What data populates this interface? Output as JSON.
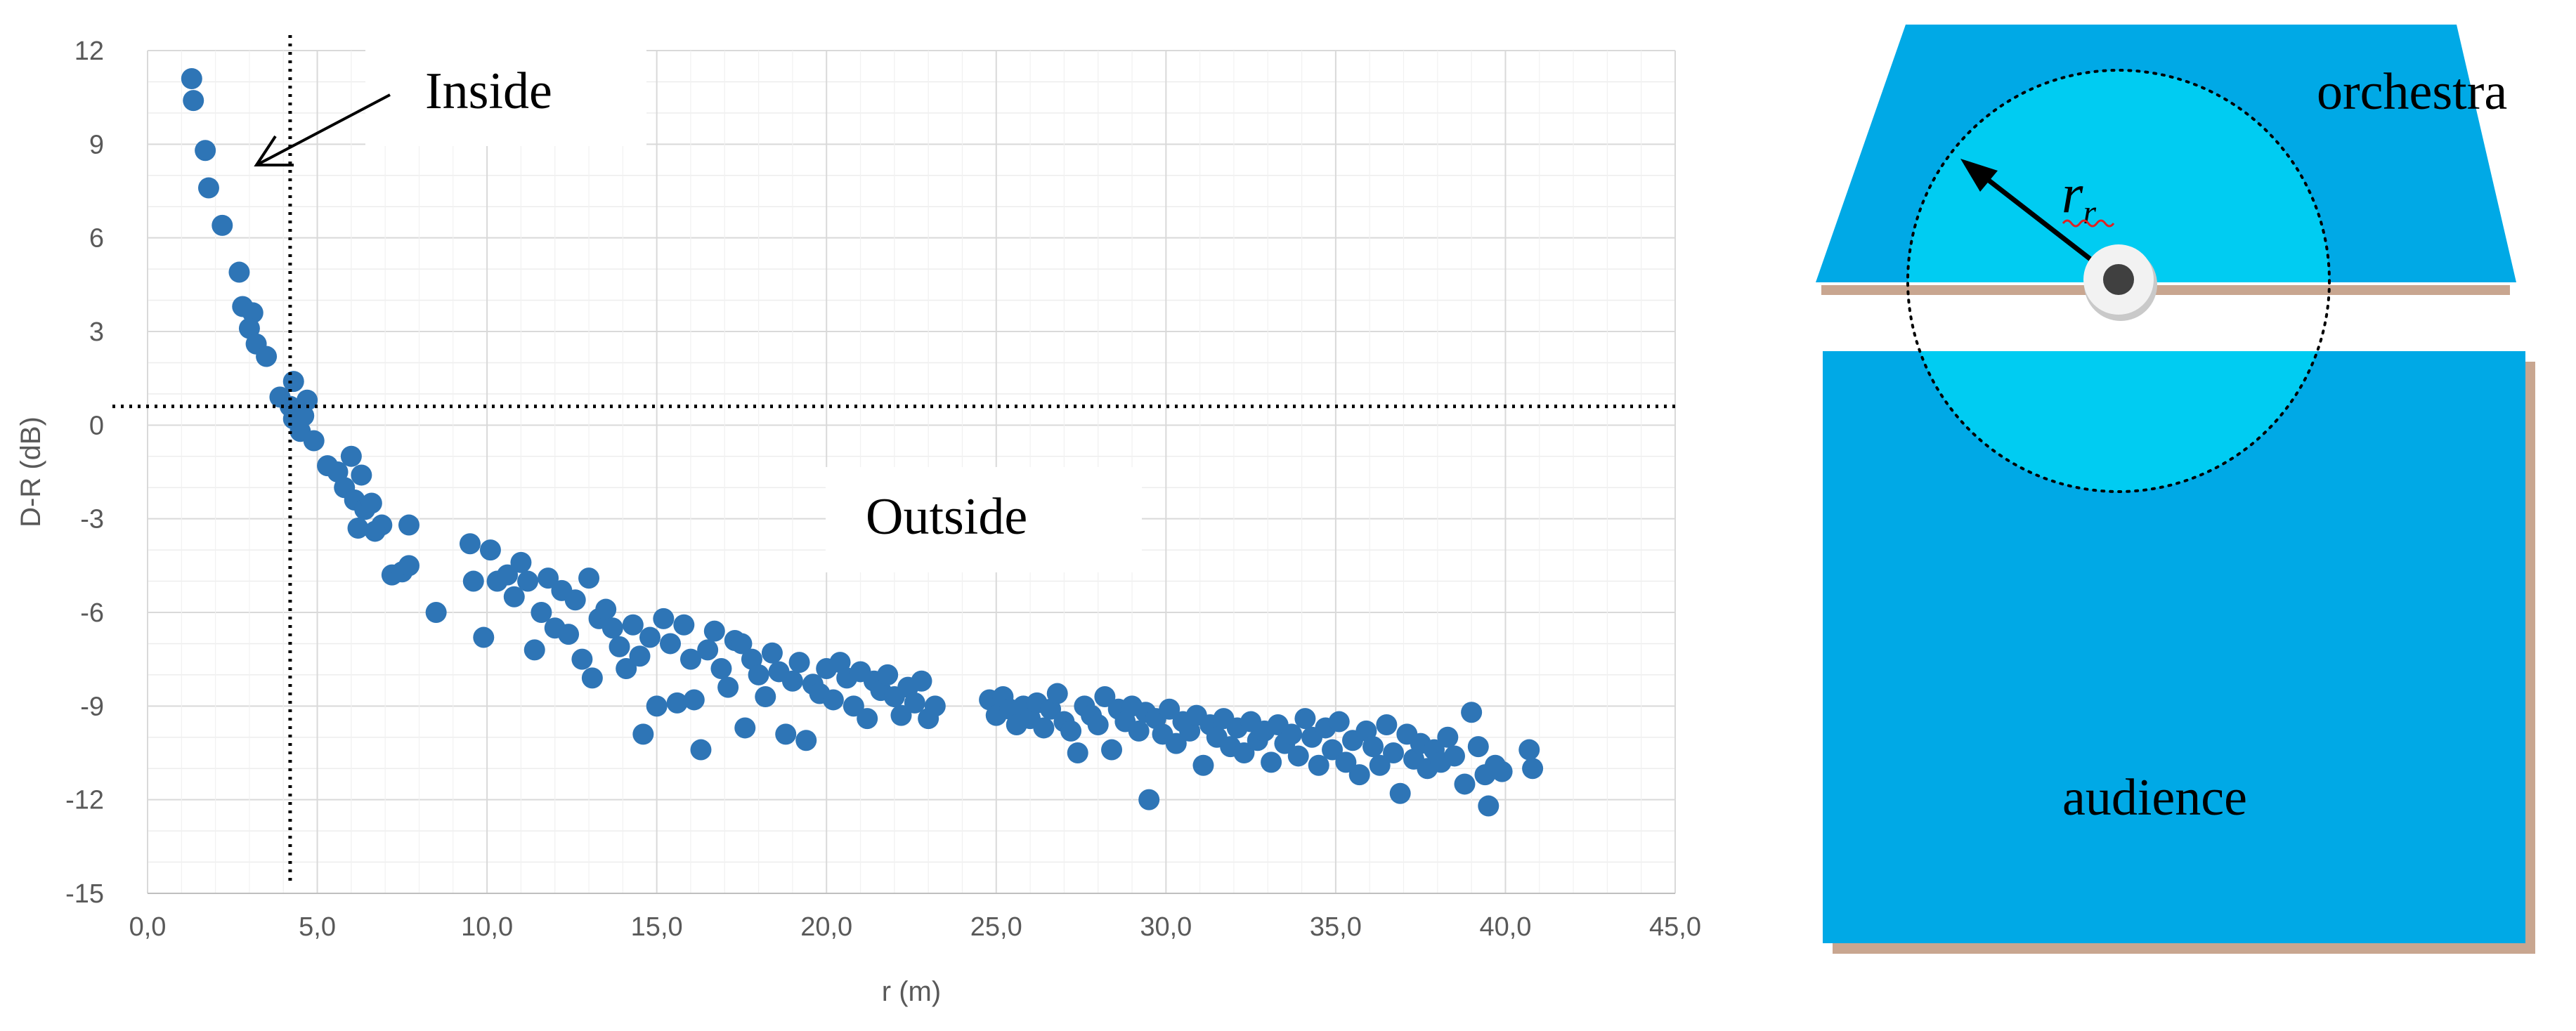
{
  "chart_data": {
    "type": "scatter",
    "xlabel": "r (m)",
    "ylabel": "D-R (dB)",
    "xlim": [
      0,
      45
    ],
    "ylim": [
      -15,
      12
    ],
    "x_ticks": [
      "0,0",
      "5,0",
      "10,0",
      "15,0",
      "20,0",
      "25,0",
      "30,0",
      "35,0",
      "40,0",
      "45,0"
    ],
    "y_ticks": [
      "12",
      "9",
      "6",
      "3",
      "0",
      "-3",
      "-6",
      "-9",
      "-12",
      "-15"
    ],
    "grid": "horizontal and vertical",
    "marker_color": "#2E75B6",
    "critical_distance_m": 4.2,
    "zero_line_db": 0.6,
    "annotations": {
      "inside": "Inside",
      "outside": "Outside"
    },
    "series": [
      {
        "values": [
          [
            1.3,
            11.1
          ],
          [
            1.35,
            10.4
          ],
          [
            1.7,
            8.8
          ],
          [
            1.8,
            7.6
          ],
          [
            2.2,
            6.4
          ],
          [
            2.7,
            4.9
          ],
          [
            2.8,
            3.8
          ],
          [
            3.1,
            3.6
          ],
          [
            3.0,
            3.1
          ],
          [
            3.2,
            2.6
          ],
          [
            3.5,
            2.2
          ],
          [
            3.9,
            0.9
          ],
          [
            4.2,
            0.6
          ],
          [
            4.3,
            1.4
          ],
          [
            4.3,
            0.2
          ],
          [
            4.5,
            -0.2
          ],
          [
            4.6,
            0.3
          ],
          [
            4.7,
            0.8
          ],
          [
            4.9,
            -0.5
          ],
          [
            5.3,
            -1.3
          ],
          [
            5.6,
            -1.5
          ],
          [
            5.8,
            -2.0
          ],
          [
            6.0,
            -1.0
          ],
          [
            6.1,
            -2.4
          ],
          [
            6.3,
            -1.6
          ],
          [
            6.4,
            -2.7
          ],
          [
            6.2,
            -3.3
          ],
          [
            6.6,
            -2.5
          ],
          [
            6.9,
            -3.2
          ],
          [
            6.7,
            -3.4
          ],
          [
            7.2,
            -4.8
          ],
          [
            7.5,
            -4.7
          ],
          [
            7.7,
            -4.5
          ],
          [
            7.7,
            -3.2
          ],
          [
            8.5,
            -6.0
          ],
          [
            9.5,
            -3.8
          ],
          [
            9.6,
            -5.0
          ],
          [
            9.9,
            -6.8
          ],
          [
            10.1,
            -4.0
          ],
          [
            10.3,
            -5.0
          ],
          [
            10.6,
            -4.8
          ],
          [
            10.8,
            -5.5
          ],
          [
            11.0,
            -4.4
          ],
          [
            11.2,
            -5.0
          ],
          [
            11.4,
            -7.2
          ],
          [
            11.6,
            -6.0
          ],
          [
            11.8,
            -4.9
          ],
          [
            12.0,
            -6.5
          ],
          [
            12.2,
            -5.3
          ],
          [
            12.4,
            -6.7
          ],
          [
            12.6,
            -5.6
          ],
          [
            12.8,
            -7.5
          ],
          [
            13.0,
            -4.9
          ],
          [
            13.1,
            -8.1
          ],
          [
            13.3,
            -6.2
          ],
          [
            13.5,
            -5.9
          ],
          [
            13.7,
            -6.5
          ],
          [
            13.9,
            -7.1
          ],
          [
            14.1,
            -7.8
          ],
          [
            14.3,
            -6.4
          ],
          [
            14.5,
            -7.4
          ],
          [
            14.6,
            -9.9
          ],
          [
            14.8,
            -6.8
          ],
          [
            15.0,
            -9.0
          ],
          [
            15.2,
            -6.2
          ],
          [
            15.4,
            -7.0
          ],
          [
            15.6,
            -8.9
          ],
          [
            15.8,
            -6.4
          ],
          [
            16.0,
            -7.5
          ],
          [
            16.1,
            -8.8
          ],
          [
            16.3,
            -10.4
          ],
          [
            16.5,
            -7.2
          ],
          [
            16.7,
            -6.6
          ],
          [
            16.9,
            -7.8
          ],
          [
            17.1,
            -8.4
          ],
          [
            17.3,
            -6.9
          ],
          [
            17.5,
            -7.0
          ],
          [
            17.6,
            -9.7
          ],
          [
            17.8,
            -7.5
          ],
          [
            18.0,
            -8.0
          ],
          [
            18.2,
            -8.7
          ],
          [
            18.4,
            -7.3
          ],
          [
            18.6,
            -7.9
          ],
          [
            18.8,
            -9.9
          ],
          [
            19.0,
            -8.2
          ],
          [
            19.2,
            -7.6
          ],
          [
            19.4,
            -10.1
          ],
          [
            19.6,
            -8.3
          ],
          [
            19.8,
            -8.6
          ],
          [
            20.0,
            -7.8
          ],
          [
            20.2,
            -8.8
          ],
          [
            20.4,
            -7.6
          ],
          [
            20.6,
            -8.1
          ],
          [
            20.8,
            -9.0
          ],
          [
            21.0,
            -7.9
          ],
          [
            21.2,
            -9.4
          ],
          [
            21.4,
            -8.2
          ],
          [
            21.6,
            -8.5
          ],
          [
            21.8,
            -8.0
          ],
          [
            22.0,
            -8.7
          ],
          [
            22.2,
            -9.3
          ],
          [
            22.4,
            -8.4
          ],
          [
            22.6,
            -8.9
          ],
          [
            22.8,
            -8.2
          ],
          [
            23.0,
            -9.4
          ],
          [
            23.2,
            -9.0
          ],
          [
            24.8,
            -8.8
          ],
          [
            25.0,
            -9.3
          ],
          [
            25.2,
            -8.7
          ],
          [
            25.4,
            -9.1
          ],
          [
            25.6,
            -9.6
          ],
          [
            25.8,
            -9.0
          ],
          [
            26.0,
            -9.4
          ],
          [
            26.2,
            -8.9
          ],
          [
            26.4,
            -9.7
          ],
          [
            26.6,
            -9.1
          ],
          [
            26.8,
            -8.6
          ],
          [
            27.0,
            -9.5
          ],
          [
            27.2,
            -9.8
          ],
          [
            27.4,
            -10.5
          ],
          [
            27.6,
            -9.0
          ],
          [
            27.8,
            -9.3
          ],
          [
            28.0,
            -9.6
          ],
          [
            28.2,
            -8.7
          ],
          [
            28.4,
            -10.4
          ],
          [
            28.6,
            -9.1
          ],
          [
            28.8,
            -9.5
          ],
          [
            29.0,
            -9.0
          ],
          [
            29.2,
            -9.8
          ],
          [
            29.4,
            -9.2
          ],
          [
            29.5,
            -12.0
          ],
          [
            29.7,
            -9.4
          ],
          [
            29.9,
            -9.9
          ],
          [
            30.1,
            -9.1
          ],
          [
            30.3,
            -10.2
          ],
          [
            30.5,
            -9.5
          ],
          [
            30.7,
            -9.8
          ],
          [
            30.9,
            -9.3
          ],
          [
            31.1,
            -10.9
          ],
          [
            31.3,
            -9.6
          ],
          [
            31.5,
            -10.0
          ],
          [
            31.7,
            -9.4
          ],
          [
            31.9,
            -10.3
          ],
          [
            32.1,
            -9.7
          ],
          [
            32.3,
            -10.5
          ],
          [
            32.5,
            -9.5
          ],
          [
            32.7,
            -10.1
          ],
          [
            32.9,
            -9.8
          ],
          [
            33.1,
            -10.8
          ],
          [
            33.3,
            -9.6
          ],
          [
            33.5,
            -10.2
          ],
          [
            33.7,
            -9.9
          ],
          [
            33.9,
            -10.6
          ],
          [
            34.1,
            -9.4
          ],
          [
            34.3,
            -10.0
          ],
          [
            34.5,
            -10.9
          ],
          [
            34.7,
            -9.7
          ],
          [
            34.9,
            -10.4
          ],
          [
            35.1,
            -9.5
          ],
          [
            35.3,
            -10.8
          ],
          [
            35.5,
            -10.1
          ],
          [
            35.7,
            -11.2
          ],
          [
            35.9,
            -9.8
          ],
          [
            36.1,
            -10.3
          ],
          [
            36.3,
            -10.9
          ],
          [
            36.5,
            -9.6
          ],
          [
            36.7,
            -10.5
          ],
          [
            36.9,
            -11.8
          ],
          [
            37.1,
            -9.9
          ],
          [
            37.3,
            -10.7
          ],
          [
            37.5,
            -10.2
          ],
          [
            37.7,
            -11.0
          ],
          [
            37.9,
            -10.4
          ],
          [
            38.1,
            -10.8
          ],
          [
            38.3,
            -10.0
          ],
          [
            38.5,
            -10.6
          ],
          [
            38.8,
            -11.5
          ],
          [
            39.0,
            -9.2
          ],
          [
            39.2,
            -10.3
          ],
          [
            39.4,
            -11.2
          ],
          [
            39.5,
            -12.2
          ],
          [
            39.7,
            -10.9
          ],
          [
            39.9,
            -11.1
          ],
          [
            40.7,
            -10.4
          ],
          [
            40.8,
            -11.0
          ]
        ]
      }
    ]
  },
  "diagram": {
    "orchestra_label": "orchestra",
    "audience_label": "audience",
    "radius_symbol": "r",
    "radius_subscript": "r",
    "colors": {
      "zone": "#00A9E6",
      "circle_fill": "#00CCF2",
      "shadow": "#C8A690"
    }
  }
}
